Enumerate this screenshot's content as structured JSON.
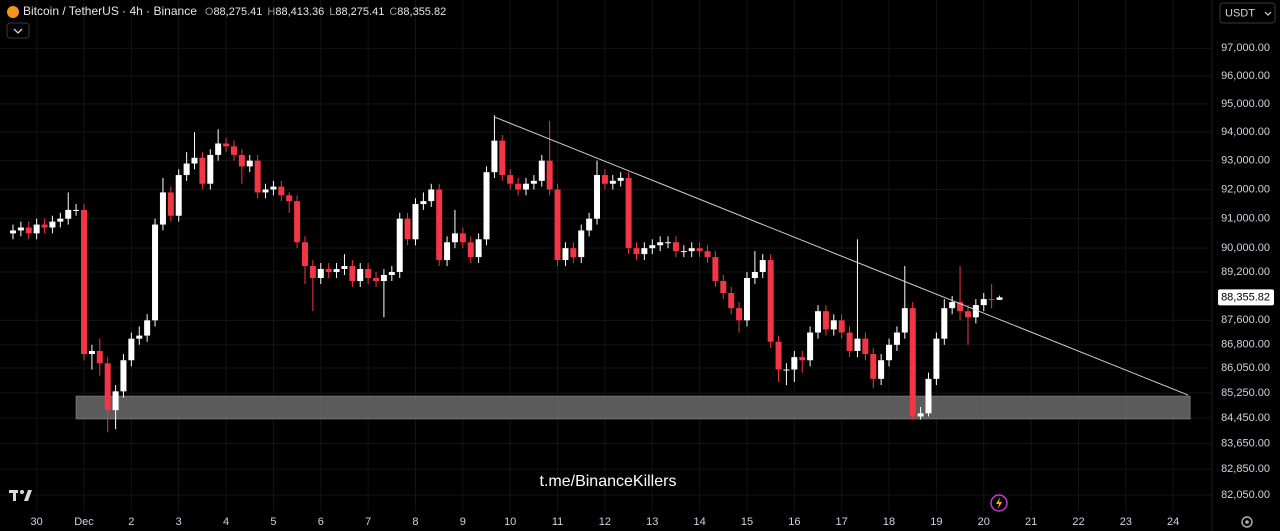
{
  "chart_data": {
    "type": "candlestick",
    "title": "Bitcoin / TetherUS · 4h · Binance",
    "currency": "USDT",
    "watermark": "t.me/BinanceKillers",
    "legend": {
      "prefixes": [
        "O",
        "H",
        "L",
        "C"
      ],
      "values": [
        88275.41,
        88413.36,
        88275.41,
        88355.82
      ],
      "value_labels": [
        "88,275.41",
        "88,413.36",
        "88,275.41",
        "88,355.82"
      ]
    },
    "last_price": {
      "value": 88355.82,
      "label": "88,355.82"
    },
    "up_color": "#ffffff",
    "down_color": "#f23645",
    "grid": true,
    "log_scale": true,
    "xlim": [
      -0.774,
      24.82
    ],
    "ylim": [
      81560,
      98770
    ],
    "xticks": [
      {
        "value": 0,
        "label": "30"
      },
      {
        "value": 1,
        "label": "Dec"
      },
      2,
      3,
      4,
      5,
      6,
      7,
      8,
      9,
      10,
      11,
      12,
      13,
      14,
      15,
      16,
      17,
      18,
      19,
      20,
      21,
      22,
      23,
      24
    ],
    "yticks": [
      {
        "value": 97000,
        "label": "97,000.00"
      },
      {
        "value": 96000,
        "label": "96,000.00"
      },
      {
        "value": 95000,
        "label": "95,000.00"
      },
      {
        "value": 94000,
        "label": "94,000.00"
      },
      {
        "value": 93000,
        "label": "93,000.00"
      },
      {
        "value": 92000,
        "label": "92,000.00"
      },
      {
        "value": 91000,
        "label": "91,000.00"
      },
      {
        "value": 90000,
        "label": "90,000.00"
      },
      {
        "value": 89200,
        "label": "89,200.00"
      },
      {
        "value": 87600,
        "label": "87,600.00"
      },
      {
        "value": 86800,
        "label": "86,800.00"
      },
      {
        "value": 86050,
        "label": "86,050.00"
      },
      {
        "value": 85250,
        "label": "85,250.00"
      },
      {
        "value": 84450,
        "label": "84,450.00"
      },
      {
        "value": 83650,
        "label": "83,650.00"
      },
      {
        "value": 82850,
        "label": "82,850.00"
      },
      {
        "value": 82050,
        "label": "82,050.00"
      }
    ],
    "trendline": {
      "x": [
        9.659,
        24.316
      ],
      "y": [
        94540,
        85180
      ],
      "color": "#d0d0d0"
    },
    "zone": {
      "x": [
        0.831,
        24.36
      ],
      "ylim": [
        84420,
        85150
      ],
      "color": "#6b6b6b"
    },
    "x": [
      -0.5,
      -0.333,
      -0.167,
      0,
      0.167,
      0.333,
      0.5,
      0.667,
      0.833,
      1,
      1.167,
      1.333,
      1.5,
      1.667,
      1.833,
      2,
      2.167,
      2.333,
      2.5,
      2.667,
      2.833,
      3,
      3.167,
      3.333,
      3.5,
      3.667,
      3.833,
      4,
      4.167,
      4.333,
      4.5,
      4.667,
      4.833,
      5,
      5.167,
      5.333,
      5.5,
      5.667,
      5.833,
      6,
      6.167,
      6.333,
      6.5,
      6.667,
      6.833,
      7,
      7.167,
      7.333,
      7.5,
      7.667,
      7.833,
      8,
      8.167,
      8.333,
      8.5,
      8.667,
      8.833,
      9,
      9.167,
      9.333,
      9.5,
      9.667,
      9.833,
      10,
      10.167,
      10.333,
      10.5,
      10.667,
      10.833,
      11,
      11.167,
      11.333,
      11.5,
      11.667,
      11.833,
      12,
      12.167,
      12.333,
      12.5,
      12.667,
      12.833,
      13,
      13.167,
      13.333,
      13.5,
      13.667,
      13.833,
      14,
      14.167,
      14.333,
      14.5,
      14.667,
      14.833,
      15,
      15.167,
      15.333,
      15.5,
      15.667,
      15.833,
      16,
      16.167,
      16.333,
      16.5,
      16.667,
      16.833,
      17,
      17.167,
      17.333,
      17.5,
      17.667,
      17.833,
      18,
      18.167,
      18.333,
      18.5,
      18.667,
      18.833,
      19,
      19.167,
      19.333,
      19.5,
      19.667,
      19.833,
      20,
      20.167,
      20.333
    ],
    "open": [
      90500,
      90600,
      90700,
      90500,
      90800,
      90700,
      90900,
      91000,
      91300,
      91300,
      86500,
      86600,
      86200,
      84700,
      85300,
      86300,
      87000,
      87100,
      87600,
      90800,
      91900,
      91100,
      92500,
      92900,
      93100,
      92200,
      93200,
      93600,
      93500,
      93200,
      92800,
      93000,
      91900,
      92000,
      92100,
      91800,
      91600,
      90200,
      89400,
      89000,
      89300,
      89200,
      89300,
      89400,
      88900,
      89300,
      89000,
      88900,
      89100,
      89200,
      91000,
      90300,
      91500,
      91600,
      92000,
      89600,
      90200,
      90500,
      90200,
      89700,
      90300,
      92600,
      93700,
      92500,
      92200,
      92000,
      92200,
      92300,
      93000,
      92000,
      89600,
      90000,
      89700,
      90600,
      91000,
      92500,
      92200,
      92300,
      92400,
      90000,
      89800,
      90000,
      90100,
      90200,
      90200,
      89900,
      89900,
      90000,
      89900,
      89700,
      88900,
      88500,
      88000,
      87600,
      89000,
      89200,
      89600,
      86900,
      86000,
      86000,
      86400,
      86300,
      87200,
      87900,
      87300,
      87600,
      87200,
      86600,
      87000,
      86500,
      85700,
      86300,
      86800,
      87200,
      88000,
      84500,
      84600,
      85700,
      87000,
      88000,
      88200,
      87900,
      87700,
      88100,
      88300,
      88275.41
    ],
    "high": [
      90800,
      90900,
      90900,
      91000,
      91000,
      91100,
      91200,
      91900,
      91500,
      91500,
      86800,
      87000,
      86400,
      85500,
      86500,
      87200,
      87400,
      87800,
      91000,
      92400,
      92100,
      92700,
      93300,
      94000,
      93300,
      93400,
      94100,
      93800,
      93700,
      93400,
      93200,
      93200,
      92200,
      92300,
      92300,
      91900,
      91800,
      90400,
      89600,
      89500,
      89500,
      89500,
      89800,
      89600,
      89500,
      89500,
      89200,
      89300,
      89400,
      91200,
      91200,
      91700,
      91900,
      92200,
      92200,
      90400,
      91300,
      90700,
      90400,
      90500,
      92800,
      94600,
      93900,
      92700,
      92400,
      92400,
      92500,
      93200,
      94400,
      92200,
      90200,
      90200,
      90800,
      91200,
      93000,
      92700,
      92500,
      92600,
      92600,
      90200,
      90200,
      90300,
      90400,
      90400,
      90400,
      90100,
      90200,
      90200,
      90100,
      89900,
      89100,
      88700,
      88200,
      89200,
      89900,
      89800,
      89800,
      87100,
      86200,
      86600,
      86600,
      87400,
      88100,
      88100,
      87800,
      87800,
      87400,
      90300,
      87200,
      86700,
      86500,
      87000,
      87400,
      89400,
      88200,
      84800,
      85900,
      87200,
      88300,
      88400,
      89400,
      88100,
      88300,
      88500,
      88800,
      88413.36
    ],
    "low": [
      90300,
      90400,
      90300,
      90300,
      90500,
      90500,
      90700,
      90800,
      91100,
      86300,
      86000,
      85800,
      84000,
      84100,
      85100,
      86100,
      86800,
      86900,
      87400,
      90600,
      90900,
      90900,
      92300,
      92700,
      92000,
      92000,
      93000,
      93300,
      93000,
      92200,
      92600,
      91700,
      91700,
      91800,
      91600,
      91200,
      90000,
      88800,
      87900,
      88800,
      89000,
      89000,
      89100,
      88700,
      88700,
      88800,
      88700,
      87700,
      88900,
      89000,
      90100,
      90100,
      91300,
      91400,
      89400,
      89400,
      90000,
      90000,
      89500,
      89500,
      90100,
      92400,
      92300,
      92000,
      91800,
      91800,
      92000,
      92100,
      91800,
      89400,
      89400,
      89500,
      89500,
      90400,
      90800,
      92000,
      92000,
      92100,
      89800,
      89600,
      89600,
      89800,
      89900,
      90000,
      89700,
      89700,
      89700,
      89700,
      89500,
      88700,
      88300,
      87800,
      87200,
      87400,
      88800,
      89000,
      86700,
      85600,
      85500,
      85600,
      85900,
      86100,
      87000,
      87100,
      87100,
      87000,
      86400,
      86400,
      86300,
      85400,
      85500,
      86100,
      86600,
      87000,
      84400,
      84400,
      84500,
      85500,
      86800,
      87800,
      87600,
      86800,
      87500,
      87900,
      88000,
      88275.41
    ],
    "close": [
      90600,
      90700,
      90500,
      90800,
      90700,
      90900,
      91000,
      91300,
      91300,
      86500,
      86600,
      86200,
      84700,
      85300,
      86300,
      87000,
      87100,
      87600,
      90800,
      91900,
      91100,
      92500,
      92900,
      93100,
      92200,
      93200,
      93600,
      93500,
      93200,
      92800,
      93000,
      91900,
      92000,
      92100,
      91800,
      91600,
      90200,
      89400,
      89000,
      89300,
      89200,
      89300,
      89400,
      88900,
      89300,
      89000,
      88900,
      89100,
      89200,
      91000,
      90300,
      91500,
      91600,
      92000,
      89600,
      90200,
      90500,
      90200,
      89700,
      90300,
      92600,
      93700,
      92500,
      92200,
      92000,
      92200,
      92300,
      93000,
      92000,
      89600,
      90000,
      89700,
      90600,
      91000,
      92500,
      92200,
      92300,
      92400,
      90000,
      89800,
      90000,
      90100,
      90200,
      90200,
      89900,
      89900,
      90000,
      89900,
      89700,
      88900,
      88500,
      88000,
      87600,
      89000,
      89200,
      89600,
      86900,
      86000,
      86000,
      86400,
      86300,
      87200,
      87900,
      87300,
      87600,
      87200,
      86600,
      87000,
      86500,
      85700,
      86300,
      86800,
      87200,
      88000,
      84500,
      84600,
      85700,
      87000,
      88000,
      88200,
      87900,
      87700,
      88100,
      88300,
      88275.41,
      88355.82
    ]
  }
}
